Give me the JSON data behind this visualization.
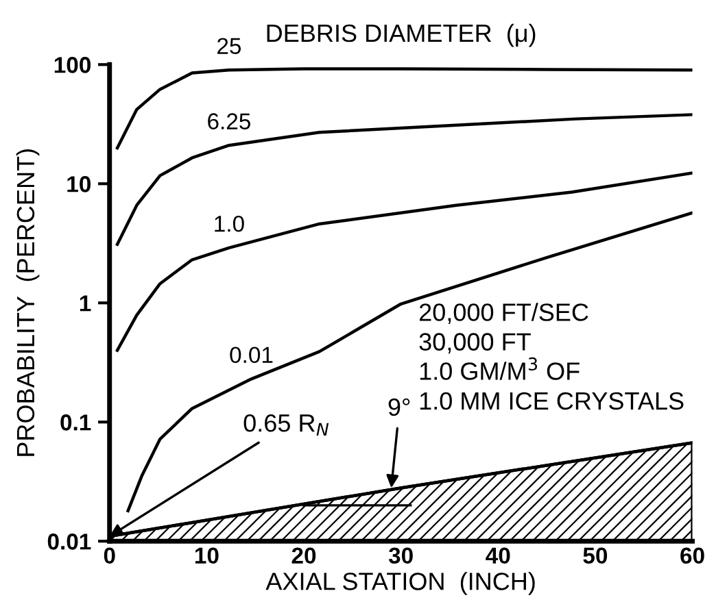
{
  "chart_data": {
    "type": "line",
    "title": "DEBRIS DIAMETER  (μ)",
    "xlabel": "AXIAL STATION  (INCH)",
    "ylabel": "PROBABILITY  (PERCENT)",
    "log": "y",
    "xlim": [
      0,
      60
    ],
    "ylim": [
      0.01,
      100
    ],
    "xticks": [
      0,
      10,
      20,
      30,
      40,
      50,
      60
    ],
    "yticks": [
      0.01,
      0.1,
      1,
      10,
      100
    ],
    "grid": false,
    "legend": false,
    "marker": "none",
    "line_style": "solid",
    "series": [
      {
        "name": "25",
        "color": "#000000",
        "x": [
          0.8,
          2.8,
          5.2,
          8.5,
          12.3,
          20,
          30,
          45,
          60
        ],
        "values": [
          20,
          42,
          62,
          85,
          90,
          92,
          92,
          91,
          90
        ]
      },
      {
        "name": "6.25",
        "color": "#000000",
        "x": [
          0.8,
          2.8,
          5.2,
          8.5,
          12.3,
          21.6,
          35.7,
          48,
          60
        ],
        "values": [
          3.1,
          6.6,
          11.7,
          16.5,
          21,
          27,
          31,
          35,
          38
        ]
      },
      {
        "name": "1.0",
        "color": "#000000",
        "x": [
          0.8,
          2.8,
          5.2,
          8.5,
          12.3,
          21.6,
          35.7,
          47.6,
          60
        ],
        "values": [
          0.4,
          0.79,
          1.45,
          2.3,
          2.9,
          4.6,
          6.6,
          8.5,
          12.3
        ]
      },
      {
        "name": "0.01",
        "color": "#000000",
        "x": [
          1.9,
          3.3,
          5.2,
          8.5,
          14.6,
          21.6,
          30,
          45,
          60
        ],
        "values": [
          0.018,
          0.035,
          0.072,
          0.13,
          0.23,
          0.39,
          0.98,
          2.4,
          5.7
        ]
      },
      {
        "type": "area",
        "color": "#000000",
        "x": [
          0,
          30,
          60
        ],
        "values": [
          0.011,
          0.028,
          0.067
        ]
      }
    ],
    "annotations": [
      "20,000 FT/SEC",
      "30,000 FT",
      "1.0 GM/M$^{3}$ OF",
      "1.0 MM ICE CRYSTALS",
      {
        "text": "0.65 R$_{N}$",
        "x": 0,
        "y": 0.011
      },
      {
        "text": "9°",
        "x": 29,
        "y": 0.028
      }
    ]
  }
}
